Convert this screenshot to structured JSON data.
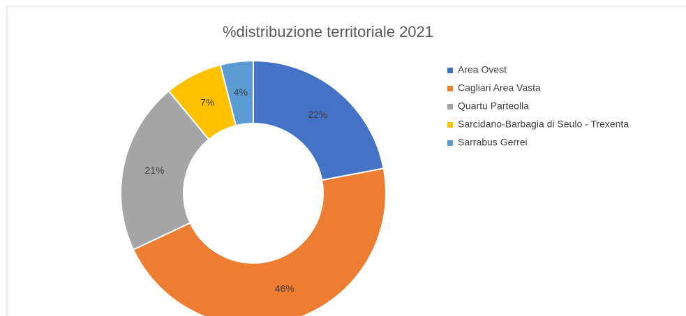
{
  "chart_data": {
    "type": "donut",
    "title": "%distribuzione territoriale 2021",
    "categories": [
      "Area Ovest",
      "Cagliari Area Vasta",
      "Quartu Parteolla",
      "Sarcidano-Barbagia di Seulo - Trexenta",
      "Sarrabus Gerrei"
    ],
    "values": [
      22,
      46,
      21,
      7,
      4
    ],
    "value_labels": [
      "22%",
      "46%",
      "21%",
      "7%",
      "4%"
    ],
    "colors": [
      "#4472c4",
      "#ed7d31",
      "#a5a5a5",
      "#ffc000",
      "#5b9bd5"
    ],
    "legend": "right"
  }
}
